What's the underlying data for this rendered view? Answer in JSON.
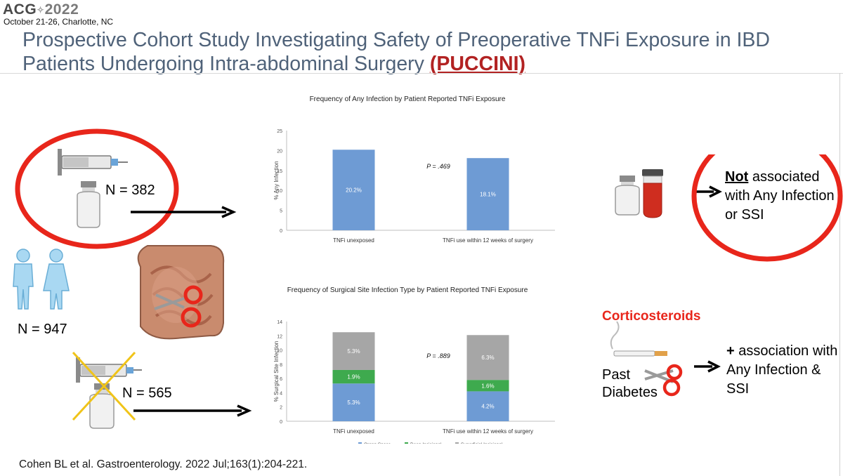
{
  "header": {
    "logo_acg": "ACG",
    "logo_year": "2022",
    "conf_date": "October 21-26, Charlotte, NC",
    "title_main": "Prospective Cohort Study Investigating Safety of Preoperative TNFi Exposure in IBD Patients Undergoing Intra-abdominal Surgery ",
    "title_acronym": "(PUCCINI)"
  },
  "left_panel": {
    "exposed_n": "N = 382",
    "total_n": "N = 947",
    "unexposed_n": "N = 565"
  },
  "right_panel": {
    "not_word": "Not",
    "not_rest": " associated with Any Infection or SSI",
    "cortico_label": "Corticosteroids",
    "past_label": "Past",
    "diabetes_label": "Diabetes",
    "plus_word": "+",
    "plus_rest": " association with Any Infection & SSI"
  },
  "citation": "Cohen BL et al. Gastroenterology. 2022 Jul;163(1):204-221.",
  "colors": {
    "organ": "#6e9bd4",
    "deep": "#3eaa4e",
    "superficial": "#a6a6a6",
    "any": "#6e9bd4",
    "accent_red": "#e8261b"
  },
  "chart_data": [
    {
      "type": "bar",
      "title": "Frequency of Any Infection by Patient Reported TNFi Exposure",
      "ylabel": "% Any Infection",
      "xlabel": "",
      "ylim": [
        0,
        25
      ],
      "yticks": [
        0,
        5,
        10,
        15,
        20,
        25
      ],
      "categories": [
        "TNFi unexposed",
        "TNFi use within 12 weeks of surgery"
      ],
      "values": [
        20.2,
        18.1
      ],
      "data_labels": [
        "20.2%",
        "18.1%"
      ],
      "annotation": "P = .469",
      "grid": false
    },
    {
      "type": "bar",
      "stacked": true,
      "title": "Frequency of Surgical Site Infection Type by Patient Reported TNFi Exposure",
      "ylabel": "% Surgical Site Infection",
      "xlabel": "",
      "ylim": [
        0,
        14
      ],
      "yticks": [
        0,
        2,
        4,
        6,
        8,
        10,
        12,
        14
      ],
      "categories": [
        "TNFi unexposed",
        "TNFi use within 12 weeks of surgery"
      ],
      "series": [
        {
          "name": "Organ Space",
          "values": [
            5.3,
            4.2
          ],
          "labels": [
            "5.3%",
            "4.2%"
          ]
        },
        {
          "name": "Deep Incisional",
          "values": [
            1.9,
            1.6
          ],
          "labels": [
            "1.9%",
            "1.6%"
          ]
        },
        {
          "name": "Superficial Incisional",
          "values": [
            5.3,
            6.3
          ],
          "labels": [
            "5.3%",
            "6.3%"
          ]
        }
      ],
      "annotation": "P = .889",
      "legend": "bottom",
      "grid": false
    }
  ]
}
